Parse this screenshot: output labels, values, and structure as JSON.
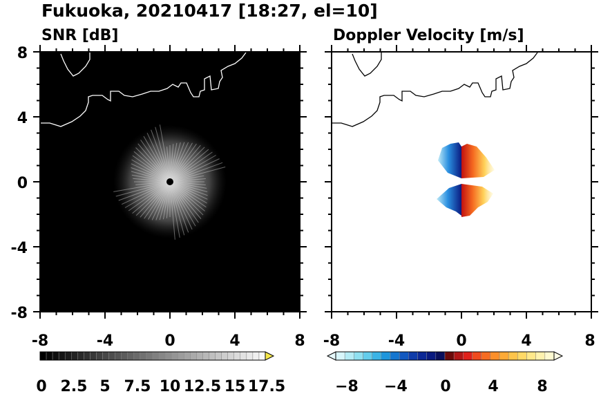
{
  "header": {
    "title": "Fukuoka, 20210417 [18:27, el=10]"
  },
  "panels": [
    {
      "title": "SNR [dB]",
      "background": "#000000",
      "axis_ticks": [
        "-8",
        "-4",
        "0",
        "4",
        "8"
      ],
      "colorbar_labels": [
        "0",
        "2.5",
        "5",
        "7.5",
        "10",
        "12.5",
        "15",
        "17.5"
      ],
      "colorbar_extends": "max",
      "colorbar_colors": [
        "#000000",
        "#070707",
        "#0e0e0e",
        "#151515",
        "#1c1c1c",
        "#232323",
        "#2a2a2a",
        "#313131",
        "#383838",
        "#404040",
        "#474747",
        "#4e4e4e",
        "#555555",
        "#5c5c5c",
        "#636363",
        "#6a6a6a",
        "#717171",
        "#787878",
        "#808080",
        "#878787",
        "#8e8e8e",
        "#959595",
        "#9c9c9c",
        "#a3a3a3",
        "#aaaaaa",
        "#b1b1b1",
        "#b8b8b8",
        "#bfbfbf",
        "#c6c6c6",
        "#cdcdcd",
        "#d4d4d4",
        "#dbdbdb",
        "#e2e2e2",
        "#e9e9e9",
        "#f0f0f0",
        "#f8f8f8"
      ],
      "colorbar_extend_color": "#f6e84a"
    },
    {
      "title": "Doppler Velocity [m/s]",
      "background": "#ffffff",
      "axis_ticks": [
        "-8",
        "-4",
        "0",
        "4",
        "8"
      ],
      "colorbar_labels": [
        "−8",
        "−4",
        "0",
        "4",
        "8"
      ],
      "colorbar_extends": "both",
      "colorbar_colors": [
        "#d8f6fb",
        "#b5ecf6",
        "#8fe0f1",
        "#63cdec",
        "#3bb4e6",
        "#1e96dc",
        "#1576d0",
        "#1258c0",
        "#0f3caa",
        "#0c2896",
        "#0a1a80",
        "#0a0f5c",
        "#6b0a0a",
        "#b01616",
        "#e0201a",
        "#f04a1e",
        "#f76c22",
        "#fb8f2a",
        "#fdaa36",
        "#fec44a",
        "#ffd966",
        "#ffe88a",
        "#fff2ae",
        "#fffad0"
      ],
      "colorbar_extend_low": "#e6f9fc",
      "colorbar_extend_high": "#fffde6"
    }
  ]
}
